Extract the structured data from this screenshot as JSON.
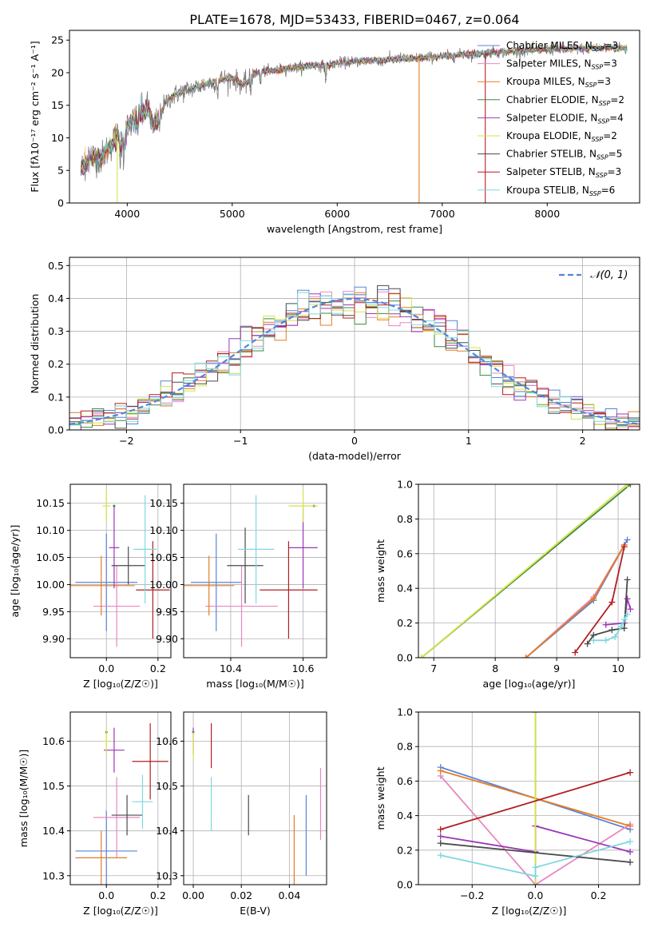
{
  "figure": {
    "title": "PLATE=1678, MJD=53433, FIBERID=0467, z=0.064"
  },
  "models": [
    {
      "name": "Chabrier MILES",
      "nssp": "3",
      "color": "#5b83d8"
    },
    {
      "name": "Salpeter MILES",
      "nssp": "3",
      "color": "#e887c0"
    },
    {
      "name": "Kroupa MILES",
      "nssp": "3",
      "color": "#e37d24"
    },
    {
      "name": "Chabrier ELODIE",
      "nssp": "2",
      "color": "#3d8a3d"
    },
    {
      "name": "Salpeter ELODIE",
      "nssp": "4",
      "color": "#9b36b8"
    },
    {
      "name": "Kroupa ELODIE",
      "nssp": "2",
      "color": "#d6e24a"
    },
    {
      "name": "Chabrier STELIB",
      "nssp": "5",
      "color": "#4a4a4a"
    },
    {
      "name": "Salpeter STELIB",
      "nssp": "3",
      "color": "#b21e22"
    },
    {
      "name": "Kroupa STELIB",
      "nssp": "6",
      "color": "#7ed8de"
    }
  ],
  "chart_data": [
    {
      "id": "spectrum",
      "type": "line",
      "xlabel": "wavelength [Angstrom, rest frame]",
      "ylabel": "Flux [fλ10⁻¹⁷ erg cm⁻² s⁻¹ A⁻¹]",
      "xlim": [
        3450,
        8880
      ],
      "ylim": [
        0,
        26.5
      ],
      "xticks": [
        4000,
        5000,
        6000,
        7000,
        8000
      ],
      "yticks": [
        0,
        5,
        10,
        15,
        20,
        25
      ],
      "legend": "top-right",
      "data_color": "#7a7a7a",
      "x": [
        3560,
        3600,
        3650,
        3700,
        3750,
        3800,
        3850,
        3900,
        3950,
        4000,
        4050,
        4100,
        4150,
        4200,
        4250,
        4300,
        4350,
        4400,
        4450,
        4500,
        4600,
        4700,
        4800,
        4900,
        5000,
        5100,
        5150,
        5200,
        5300,
        5400,
        5500,
        5600,
        5700,
        5800,
        5900,
        6000,
        6100,
        6200,
        6300,
        6400,
        6500,
        6600,
        6700,
        6800,
        6900,
        7000,
        7100,
        7200,
        7300,
        7400,
        7500,
        7600,
        7700,
        7800,
        7900,
        8000,
        8100,
        8200,
        8300,
        8400,
        8500,
        8600,
        8700,
        8760
      ],
      "y": [
        5.2,
        6.0,
        7.0,
        7.2,
        6.8,
        8.0,
        9.0,
        10.2,
        9.5,
        11.5,
        12.5,
        13.0,
        14.0,
        14.5,
        11.5,
        13.2,
        15.0,
        16.0,
        16.5,
        17.0,
        17.5,
        18.0,
        18.5,
        19.0,
        19.2,
        18.2,
        18.5,
        19.8,
        20.2,
        20.3,
        20.6,
        20.8,
        21.0,
        21.2,
        21.0,
        21.5,
        21.6,
        21.8,
        21.9,
        21.9,
        22.0,
        22.2,
        22.1,
        22.3,
        22.4,
        22.5,
        22.6,
        22.8,
        22.8,
        23.0,
        23.1,
        23.2,
        23.3,
        23.4,
        23.5,
        23.6,
        23.6,
        23.6,
        23.7,
        23.7,
        23.8,
        23.9,
        23.8,
        23.6
      ]
    },
    {
      "id": "residuals",
      "type": "line",
      "xlabel": "(data-model)/error",
      "ylabel": "Normed distribution",
      "xlim": [
        -2.5,
        2.5
      ],
      "ylim": [
        0,
        0.525
      ],
      "xticks": [
        -2,
        -1,
        0,
        1,
        2
      ],
      "yticks": [
        0.0,
        0.1,
        0.2,
        0.3,
        0.4,
        0.5
      ],
      "legend": "top-right",
      "gauss_label": "𝒩(0, 1)",
      "gauss_color": "#4f86d9"
    },
    {
      "id": "age-Z",
      "type": "scatter",
      "xlabel": "Z [log₁₀(Z/Z☉)]",
      "ylabel": "age  [log₁₀(age/yr)]",
      "xlim": [
        -0.14,
        0.25
      ],
      "ylim": [
        9.865,
        10.185
      ],
      "xticks": [
        0.0,
        0.2
      ],
      "yticks": [
        9.9,
        9.95,
        10.0,
        10.05,
        10.1,
        10.15
      ],
      "points": [
        {
          "x": 0.0,
          "y": 10.004,
          "xerr": 0.12,
          "yerr": 0.09
        },
        {
          "x": 0.04,
          "y": 9.96,
          "xerr": 0.09,
          "yerr": 0.075
        },
        {
          "x": -0.02,
          "y": 9.998,
          "xerr": 0.13,
          "yerr": 0.055
        },
        {
          "x": 0.03,
          "y": 10.145,
          "xerr": 0.0,
          "yerr": 0.0
        },
        {
          "x": 0.03,
          "y": 10.068,
          "xerr": 0.02,
          "yerr": 0.075
        },
        {
          "x": 0.0,
          "y": 10.145,
          "xerr": 0.015,
          "yerr": 0.03
        },
        {
          "x": 0.085,
          "y": 10.035,
          "xerr": 0.065,
          "yerr": 0.035
        },
        {
          "x": 0.18,
          "y": 9.99,
          "xerr": 0.065,
          "yerr": 0.09
        },
        {
          "x": 0.15,
          "y": 10.065,
          "xerr": 0.045,
          "yerr": 0.1
        }
      ]
    },
    {
      "id": "age-mass",
      "type": "scatter",
      "xlabel": "mass [log₁₀(M/M☉)]",
      "ylabel": "",
      "xlim": [
        10.27,
        10.665
      ],
      "ylim": [
        9.865,
        10.185
      ],
      "xticks": [
        10.4,
        10.6
      ],
      "yticks": [
        9.9,
        9.95,
        10.0,
        10.05,
        10.1,
        10.15
      ],
      "points": [
        {
          "x": 10.36,
          "y": 10.004,
          "xerr": 0.07,
          "yerr": 0.09
        },
        {
          "x": 10.43,
          "y": 9.96,
          "xerr": 0.1,
          "yerr": 0.075
        },
        {
          "x": 10.34,
          "y": 9.998,
          "xerr": 0.07,
          "yerr": 0.055
        },
        {
          "x": 10.63,
          "y": 10.145,
          "xerr": 0.0,
          "yerr": 0.0
        },
        {
          "x": 10.6,
          "y": 10.068,
          "xerr": 0.04,
          "yerr": 0.075
        },
        {
          "x": 10.6,
          "y": 10.145,
          "xerr": 0.04,
          "yerr": 0.03
        },
        {
          "x": 10.44,
          "y": 10.035,
          "xerr": 0.05,
          "yerr": 0.07
        },
        {
          "x": 10.56,
          "y": 9.99,
          "xerr": 0.08,
          "yerr": 0.09
        },
        {
          "x": 10.47,
          "y": 10.065,
          "xerr": 0.05,
          "yerr": 0.1
        }
      ]
    },
    {
      "id": "weight-age",
      "type": "line",
      "xlabel": "age  [log₁₀(age/yr)]",
      "ylabel": "mass weight",
      "xlim": [
        6.75,
        10.35
      ],
      "ylim": [
        0,
        1
      ],
      "xticks": [
        7,
        8,
        9,
        10
      ],
      "yticks": [
        0.0,
        0.2,
        0.4,
        0.6,
        0.8,
        1.0
      ],
      "series": [
        {
          "x": [
            8.5,
            9.6,
            10.15
          ],
          "y": [
            0.0,
            0.33,
            0.68
          ]
        },
        {
          "x": [
            8.5,
            9.6,
            10.1
          ],
          "y": [
            0.0,
            0.35,
            0.65
          ]
        },
        {
          "x": [
            8.5,
            9.6,
            10.1
          ],
          "y": [
            0.0,
            0.34,
            0.65
          ]
        },
        {
          "x": [
            6.8,
            10.2
          ],
          "y": [
            0.0,
            1.0
          ]
        },
        {
          "x": [
            9.8,
            10.1,
            10.15,
            10.2
          ],
          "y": [
            0.19,
            0.2,
            0.34,
            0.28
          ]
        },
        {
          "x": [
            6.8,
            10.15
          ],
          "y": [
            0.0,
            1.0
          ]
        },
        {
          "x": [
            9.5,
            9.6,
            9.9,
            10.1,
            10.15
          ],
          "y": [
            0.08,
            0.13,
            0.16,
            0.17,
            0.45
          ]
        },
        {
          "x": [
            9.3,
            9.9,
            10.1
          ],
          "y": [
            0.03,
            0.32,
            0.64
          ]
        },
        {
          "x": [
            9.6,
            9.8,
            9.95,
            10.05,
            10.1,
            10.15
          ],
          "y": [
            0.1,
            0.1,
            0.12,
            0.18,
            0.22,
            0.25
          ]
        }
      ]
    },
    {
      "id": "mass-Z",
      "type": "scatter",
      "xlabel": "Z [log₁₀(Z/Z☉)]",
      "ylabel": "mass [log₁₀(M/M☉)]",
      "xlim": [
        -0.14,
        0.25
      ],
      "ylim": [
        10.28,
        10.665
      ],
      "xticks": [
        0.0,
        0.2
      ],
      "yticks": [
        10.3,
        10.4,
        10.5,
        10.6
      ],
      "points": [
        {
          "x": 0.0,
          "y": 10.355,
          "xerr": 0.12,
          "yerr": 0.09
        },
        {
          "x": 0.04,
          "y": 10.43,
          "xerr": 0.09,
          "yerr": 0.09
        },
        {
          "x": -0.02,
          "y": 10.34,
          "xerr": 0.1,
          "yerr": 0.06
        },
        {
          "x": 0.0,
          "y": 10.62,
          "xerr": 0.0,
          "yerr": 0.0
        },
        {
          "x": 0.03,
          "y": 10.58,
          "xerr": 0.04,
          "yerr": 0.05
        },
        {
          "x": 0.0,
          "y": 10.6,
          "xerr": 0.01,
          "yerr": 0.03
        },
        {
          "x": 0.08,
          "y": 10.435,
          "xerr": 0.06,
          "yerr": 0.045
        },
        {
          "x": 0.17,
          "y": 10.555,
          "xerr": 0.07,
          "yerr": 0.085
        },
        {
          "x": 0.14,
          "y": 10.465,
          "xerr": 0.04,
          "yerr": 0.06
        }
      ]
    },
    {
      "id": "mass-EBV",
      "type": "scatter",
      "xlabel": "E(B-V)",
      "ylabel": "",
      "xlim": [
        -0.004,
        0.0555
      ],
      "ylim": [
        10.28,
        10.665
      ],
      "xticks": [
        0.0,
        0.02,
        0.04
      ],
      "yticks": [
        10.3,
        10.4,
        10.5,
        10.6
      ],
      "points": [
        {
          "x": 0.047,
          "y": 10.39,
          "xerr": 0.0,
          "yerr": 0.09
        },
        {
          "x": 0.053,
          "y": 10.46,
          "xerr": 0.0,
          "yerr": 0.08
        },
        {
          "x": 0.042,
          "y": 10.355,
          "xerr": 0.0,
          "yerr": 0.08
        },
        {
          "x": 0.0,
          "y": 10.62,
          "xerr": 0.0,
          "yerr": 0.0
        },
        {
          "x": 0.0,
          "y": 10.6,
          "xerr": 0.0,
          "yerr": 0.03
        },
        {
          "x": 0.0,
          "y": 10.59,
          "xerr": 0.0,
          "yerr": 0.03
        },
        {
          "x": 0.023,
          "y": 10.435,
          "xerr": 0.0,
          "yerr": 0.045
        },
        {
          "x": 0.0075,
          "y": 10.59,
          "xerr": 0.0,
          "yerr": 0.05
        },
        {
          "x": 0.0075,
          "y": 10.46,
          "xerr": 0.0,
          "yerr": 0.06
        }
      ]
    },
    {
      "id": "weight-Z",
      "type": "line",
      "xlabel": "Z [log₁₀(Z/Z☉)]",
      "ylabel": "mass weight",
      "xlim": [
        -0.37,
        0.33
      ],
      "ylim": [
        0,
        1
      ],
      "xticks": [
        -0.2,
        0.0,
        0.2
      ],
      "yticks": [
        0.0,
        0.2,
        0.4,
        0.6,
        0.8,
        1.0
      ],
      "series": [
        {
          "x": [
            -0.3,
            0.3
          ],
          "y": [
            0.68,
            0.32
          ]
        },
        {
          "x": [
            -0.3,
            0.0,
            0.3
          ],
          "y": [
            0.63,
            0.0,
            0.35
          ]
        },
        {
          "x": [
            -0.3,
            0.3
          ],
          "y": [
            0.66,
            0.34
          ]
        },
        {
          "x": [
            0.0,
            0.0
          ],
          "y": [
            0.0,
            1.0
          ]
        },
        {
          "x": [
            -0.3,
            0.0,
            0.0,
            0.3
          ],
          "y": [
            0.28,
            0.19,
            0.34,
            0.19
          ]
        },
        {
          "x": [
            0.0,
            0.0
          ],
          "y": [
            0.0,
            1.0
          ]
        },
        {
          "x": [
            -0.3,
            0.3
          ],
          "y": [
            0.24,
            0.13
          ]
        },
        {
          "x": [
            -0.3,
            0.3
          ],
          "y": [
            0.32,
            0.65
          ]
        },
        {
          "x": [
            -0.3,
            0.0,
            0.0,
            0.3
          ],
          "y": [
            0.17,
            0.05,
            0.1,
            0.25
          ]
        }
      ]
    }
  ]
}
